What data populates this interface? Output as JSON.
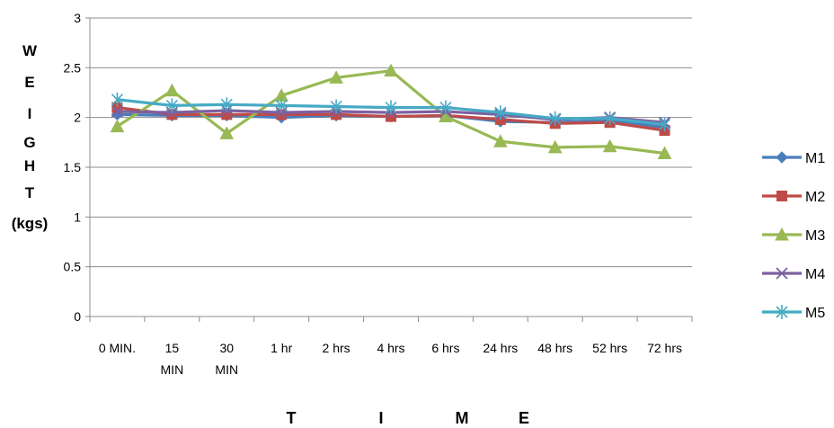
{
  "chart_data": {
    "type": "line",
    "title": "",
    "ylabel_letters": [
      "W",
      "E",
      "I",
      "G",
      "H",
      "T",
      "(kgs)"
    ],
    "xlabel_letters": [
      "T",
      "I",
      "M",
      "E"
    ],
    "categories": [
      "0 MIN.",
      "15 MIN",
      "30 MIN",
      "1 hr",
      "2 hrs",
      "4 hrs",
      "6 hrs",
      "24 hrs",
      "48 hrs",
      "52 hrs",
      "72 hrs"
    ],
    "ylim": [
      0,
      3
    ],
    "yticks": [
      "0",
      "0.5",
      "1",
      "1.5",
      "2",
      "2.5",
      "3"
    ],
    "grid": true,
    "legend_position": "right",
    "series": [
      {
        "name": "M1",
        "color": "#4a7ebb",
        "marker": "diamond",
        "values": [
          2.03,
          2.02,
          2.02,
          2.0,
          2.02,
          2.01,
          2.02,
          1.96,
          1.95,
          1.97,
          1.9
        ]
      },
      {
        "name": "M2",
        "color": "#be4b48",
        "marker": "square",
        "values": [
          2.1,
          2.03,
          2.03,
          2.03,
          2.03,
          2.01,
          2.02,
          1.98,
          1.94,
          1.95,
          1.87
        ]
      },
      {
        "name": "M3",
        "color": "#98b954",
        "marker": "triangle",
        "values": [
          1.91,
          2.27,
          1.84,
          2.22,
          2.4,
          2.47,
          2.01,
          1.76,
          1.7,
          1.71,
          1.64
        ]
      },
      {
        "name": "M4",
        "color": "#7d60a0",
        "marker": "x",
        "values": [
          2.06,
          2.05,
          2.07,
          2.05,
          2.06,
          2.05,
          2.06,
          2.03,
          1.98,
          2.0,
          1.95
        ]
      },
      {
        "name": "M5",
        "color": "#46aac5",
        "marker": "star",
        "values": [
          2.18,
          2.12,
          2.13,
          2.12,
          2.11,
          2.1,
          2.1,
          2.05,
          1.99,
          1.99,
          1.93
        ]
      }
    ]
  }
}
